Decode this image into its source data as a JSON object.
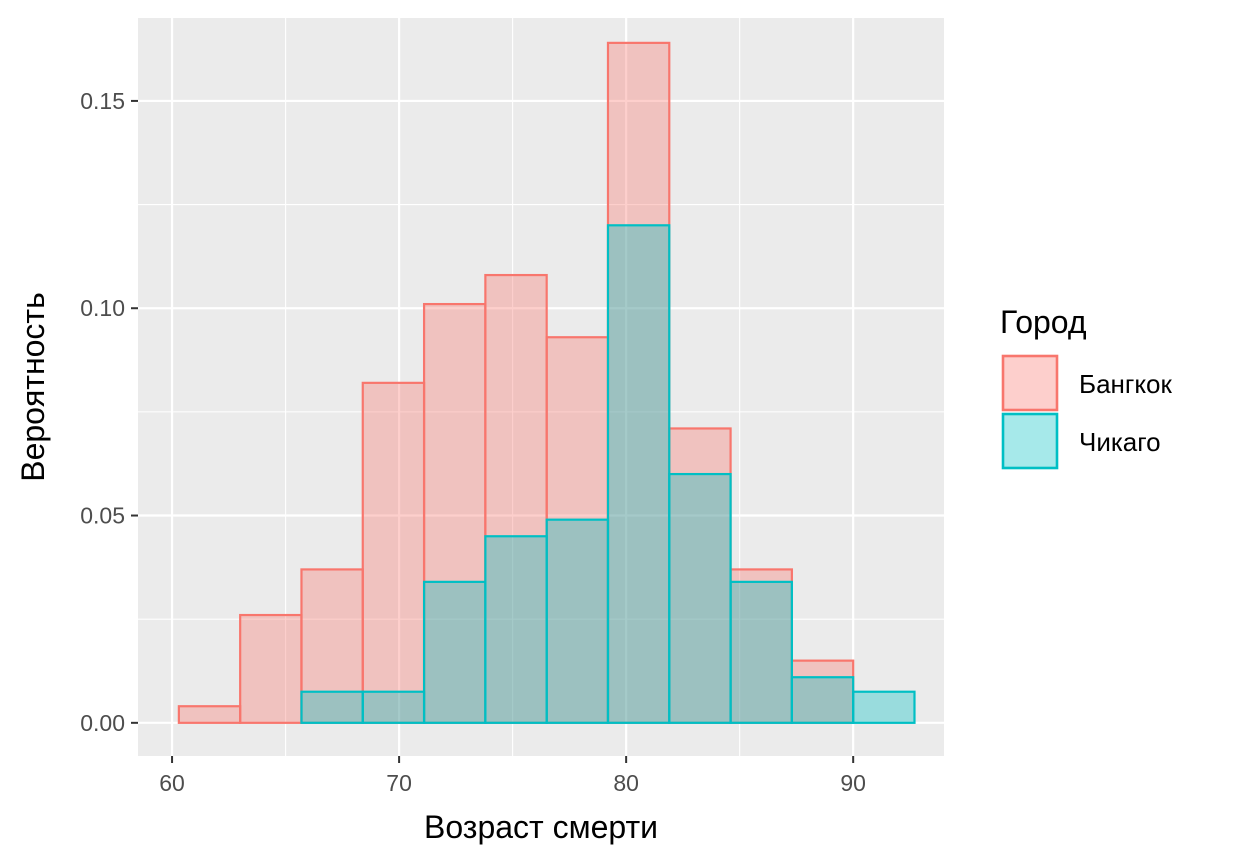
{
  "chart_data": {
    "type": "bar",
    "subtype": "histogram-overlay",
    "xlabel": "Возраст смерти",
    "ylabel": "Вероятность",
    "xlim": [
      58.5,
      94
    ],
    "ylim": [
      -0.008,
      0.17
    ],
    "x_ticks": [
      60,
      70,
      80,
      90
    ],
    "x_tick_labels": [
      "60",
      "70",
      "80",
      "90"
    ],
    "y_ticks": [
      0.0,
      0.05,
      0.1,
      0.15
    ],
    "y_tick_labels": [
      "0.00",
      "0.05",
      "0.10",
      "0.15"
    ],
    "grid": true,
    "legend_placement": "right",
    "legend_title": "Город",
    "bin_edges": [
      60.3,
      63.0,
      65.7,
      68.4,
      71.1,
      73.8,
      76.5,
      79.2,
      81.9,
      84.6,
      87.3,
      90.0,
      92.7
    ],
    "series": [
      {
        "name": "Бангкок",
        "fill": "#f8766d",
        "stroke": "#f8766d",
        "values": [
          0.004,
          0.026,
          0.037,
          0.082,
          0.101,
          0.108,
          0.093,
          0.164,
          0.071,
          0.037,
          0.015,
          0.0
        ]
      },
      {
        "name": "Чикаго",
        "fill": "#00bfc4",
        "stroke": "#00bfc4",
        "values": [
          0.0,
          0.0,
          0.0075,
          0.0075,
          0.034,
          0.045,
          0.049,
          0.12,
          0.06,
          0.034,
          0.011,
          0.0075
        ]
      }
    ],
    "colors": {
      "panel": "#ebebeb",
      "grid": "#ffffff"
    }
  }
}
